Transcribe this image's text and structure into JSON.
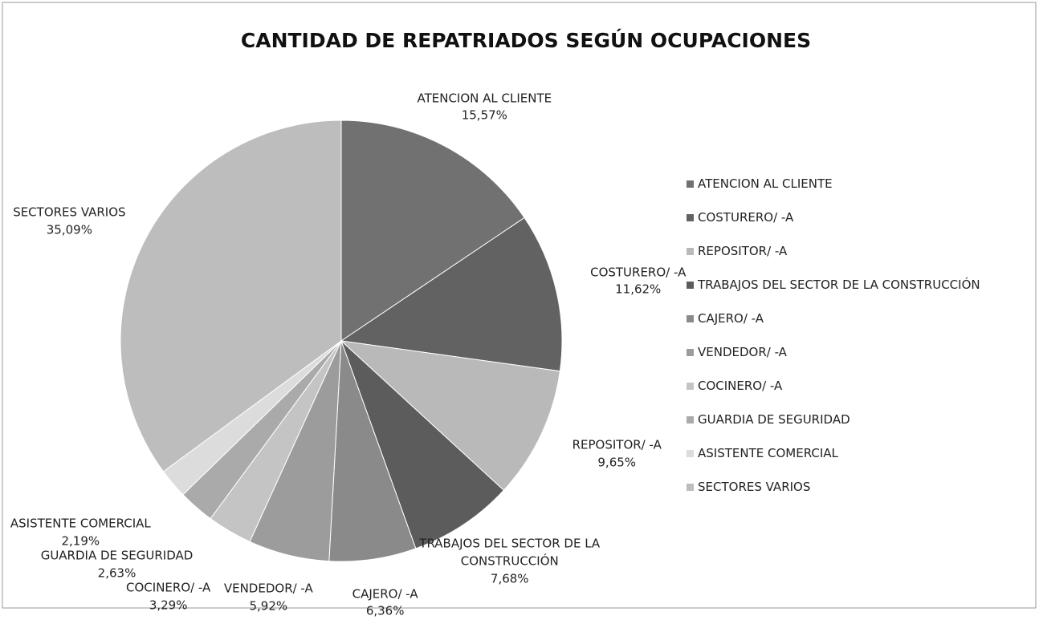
{
  "chart_data": {
    "type": "pie",
    "title": "CANTIDAD DE REPATRIADOS SEGÚN OCUPACIONES",
    "categories": [
      "ATENCION AL CLIENTE",
      "COSTURERO/ -A",
      "REPOSITOR/ -A",
      "TRABAJOS DEL SECTOR DE LA CONSTRUCCIÓN",
      "CAJERO/ -A",
      "VENDEDOR/ -A",
      "COCINERO/ -A",
      "GUARDIA DE SEGURIDAD",
      "ASISTENTE COMERCIAL",
      "SECTORES VARIOS"
    ],
    "values": [
      15.57,
      11.62,
      9.65,
      7.68,
      6.36,
      5.92,
      3.29,
      2.63,
      2.19,
      35.09
    ],
    "value_labels": [
      "15,57%",
      "11,62%",
      "9,65%",
      "7,68%",
      "6,36%",
      "5,92%",
      "3,29%",
      "2,63%",
      "2,19%",
      "35,09%"
    ],
    "colors": [
      "#717171",
      "#626262",
      "#b9b9b9",
      "#5c5c5c",
      "#8a8a8a",
      "#9c9c9c",
      "#c4c4c4",
      "#aaaaaa",
      "#dcdcdc",
      "#bdbdbd"
    ],
    "legend": "right"
  }
}
